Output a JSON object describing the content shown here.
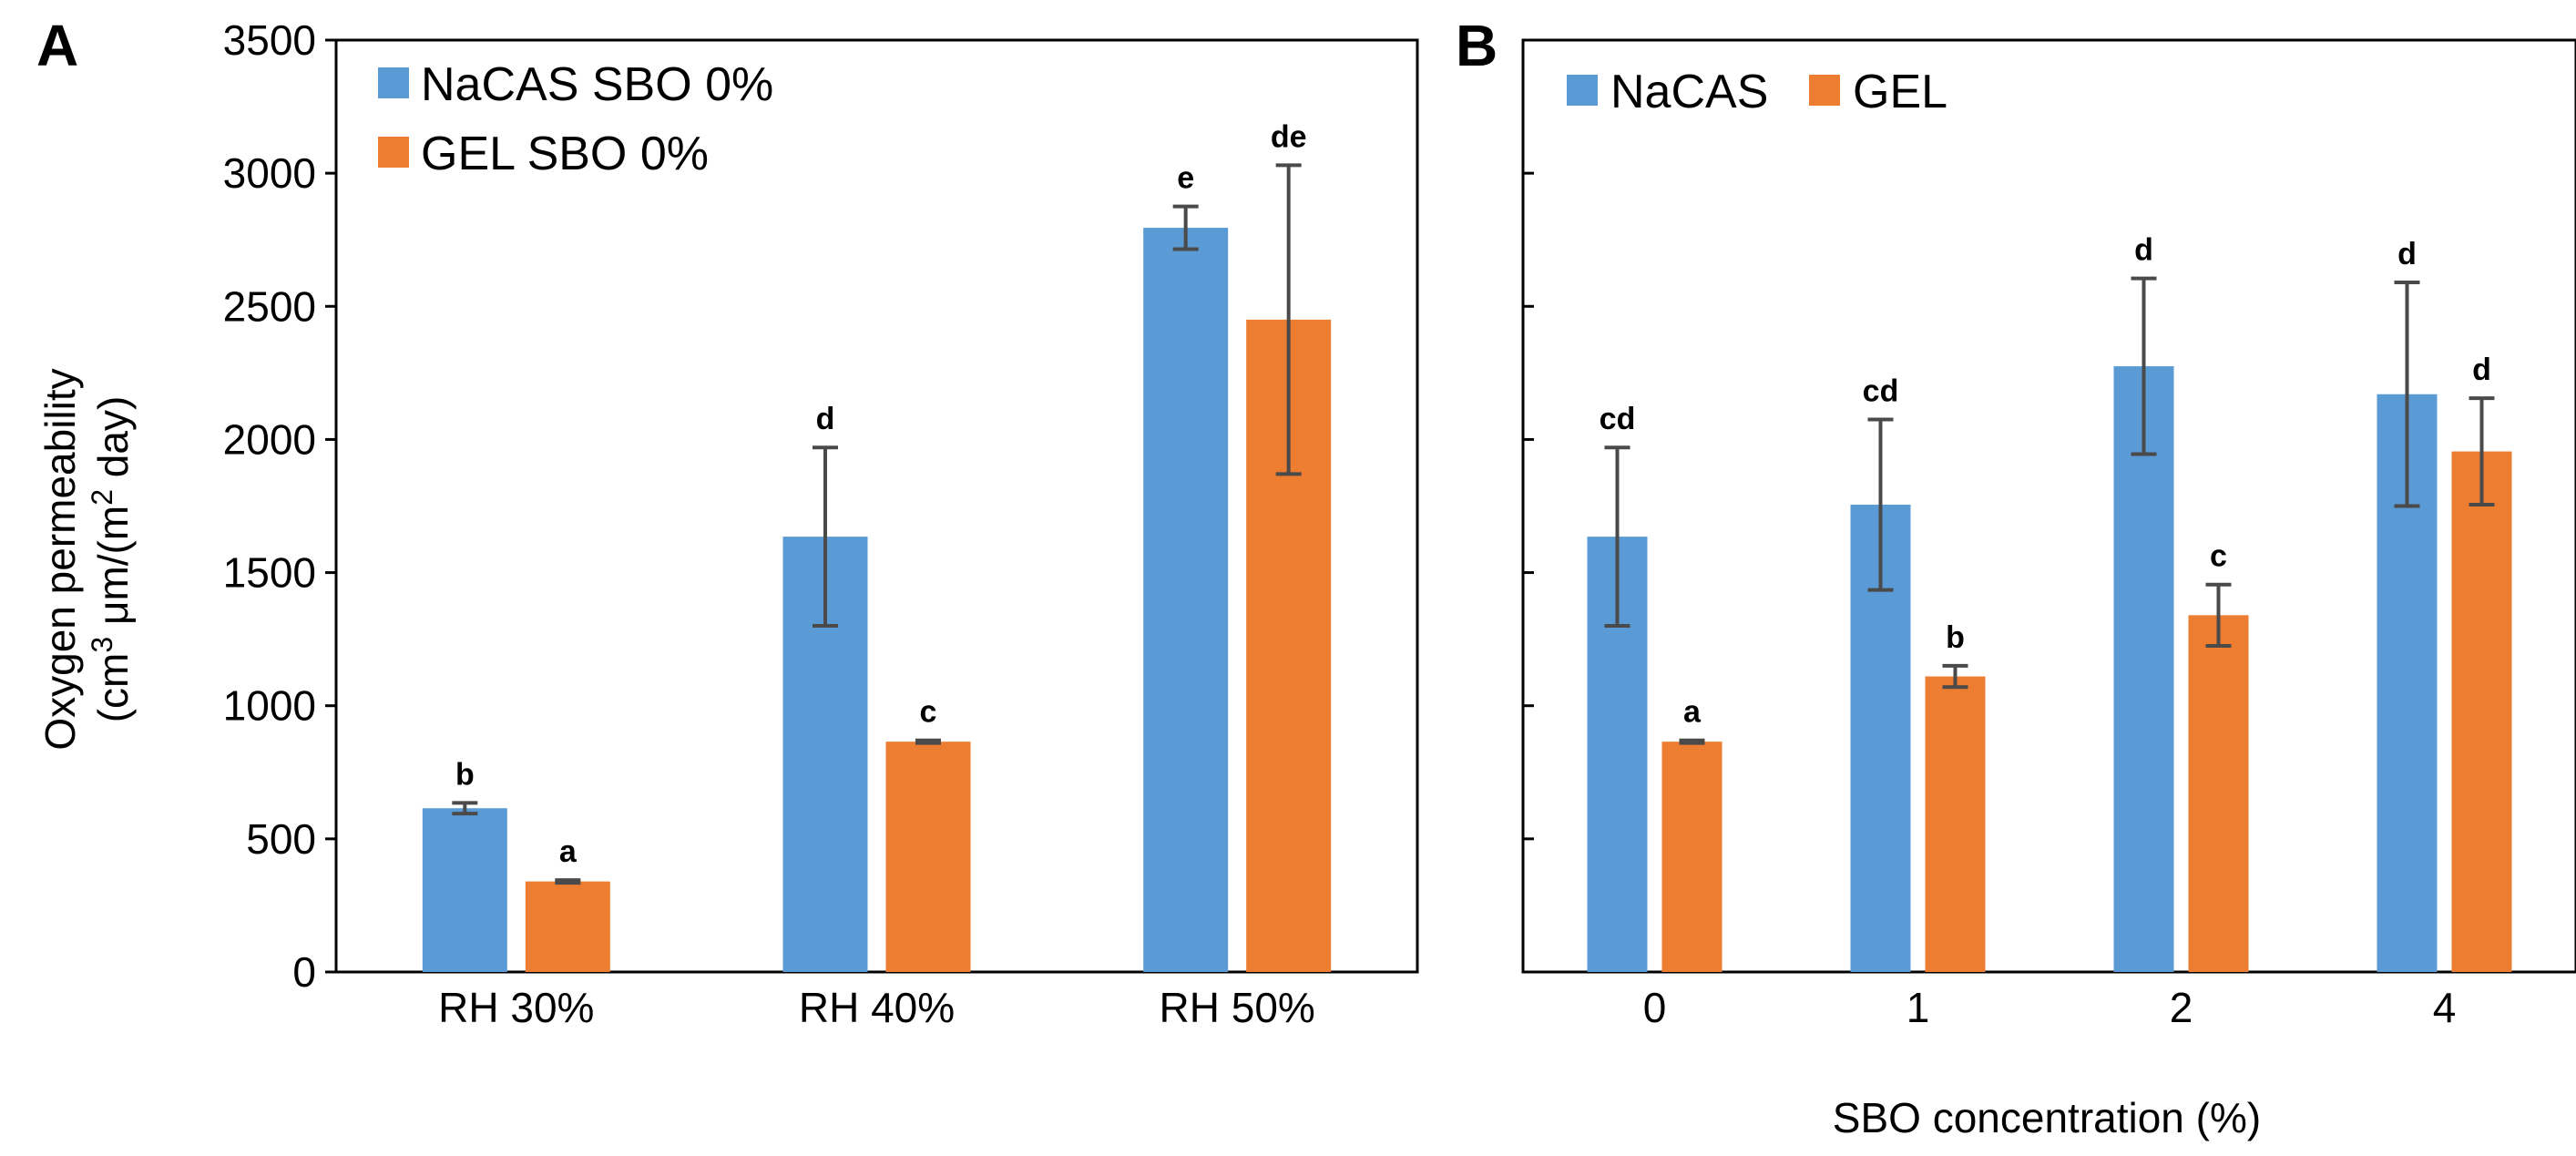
{
  "colors": {
    "nacas": "#5b9bd5",
    "gel": "#ed7d31",
    "error": "#4a4a4a"
  },
  "y_axis": {
    "title_line1": "Oxygen permeability",
    "title_line2_pre": "(cm",
    "title_line2_sup1": "3",
    "title_line2_mid": " μm/(m",
    "title_line2_sup2": "2",
    "title_line2_post": " day)"
  },
  "chart_data": [
    {
      "panel": "A",
      "type": "bar",
      "categories": [
        "RH 30%",
        "RH 40%",
        "RH 50%"
      ],
      "series": [
        {
          "name": "NaCAS SBO 0%",
          "color_key": "nacas",
          "values": [
            615,
            1635,
            2795
          ],
          "errors": [
            20,
            335,
            80
          ],
          "labels": [
            "b",
            "d",
            "e"
          ]
        },
        {
          "name": "GEL SBO 0%",
          "color_key": "gel",
          "values": [
            340,
            865,
            2450
          ],
          "errors": [
            5,
            5,
            580
          ],
          "labels": [
            "a",
            "c",
            "de"
          ]
        }
      ],
      "xlabel": "",
      "ylabel": "Oxygen permeability (cm3 μm/(m2 day)",
      "ylim": [
        0,
        3500
      ],
      "yticks": [
        0,
        500,
        1000,
        1500,
        2000,
        2500,
        3000,
        3500
      ],
      "legend": "top-left"
    },
    {
      "panel": "B",
      "type": "bar",
      "categories": [
        "0",
        "1",
        "2",
        "4"
      ],
      "series": [
        {
          "name": "NaCAS",
          "color_key": "nacas",
          "values": [
            1635,
            1755,
            2275,
            2170
          ],
          "errors": [
            335,
            320,
            330,
            420
          ],
          "labels": [
            "cd",
            "cd",
            "d",
            "d"
          ]
        },
        {
          "name": "GEL",
          "color_key": "gel",
          "values": [
            865,
            1110,
            1340,
            1955
          ],
          "errors": [
            5,
            40,
            115,
            200
          ],
          "labels": [
            "a",
            "b",
            "c",
            "d"
          ]
        }
      ],
      "xlabel": "SBO concentration (%)",
      "ylabel": "",
      "ylim": [
        0,
        3500
      ],
      "yticks": [
        0,
        500,
        1000,
        1500,
        2000,
        2500,
        3000,
        3500
      ],
      "legend": "top-left"
    }
  ]
}
